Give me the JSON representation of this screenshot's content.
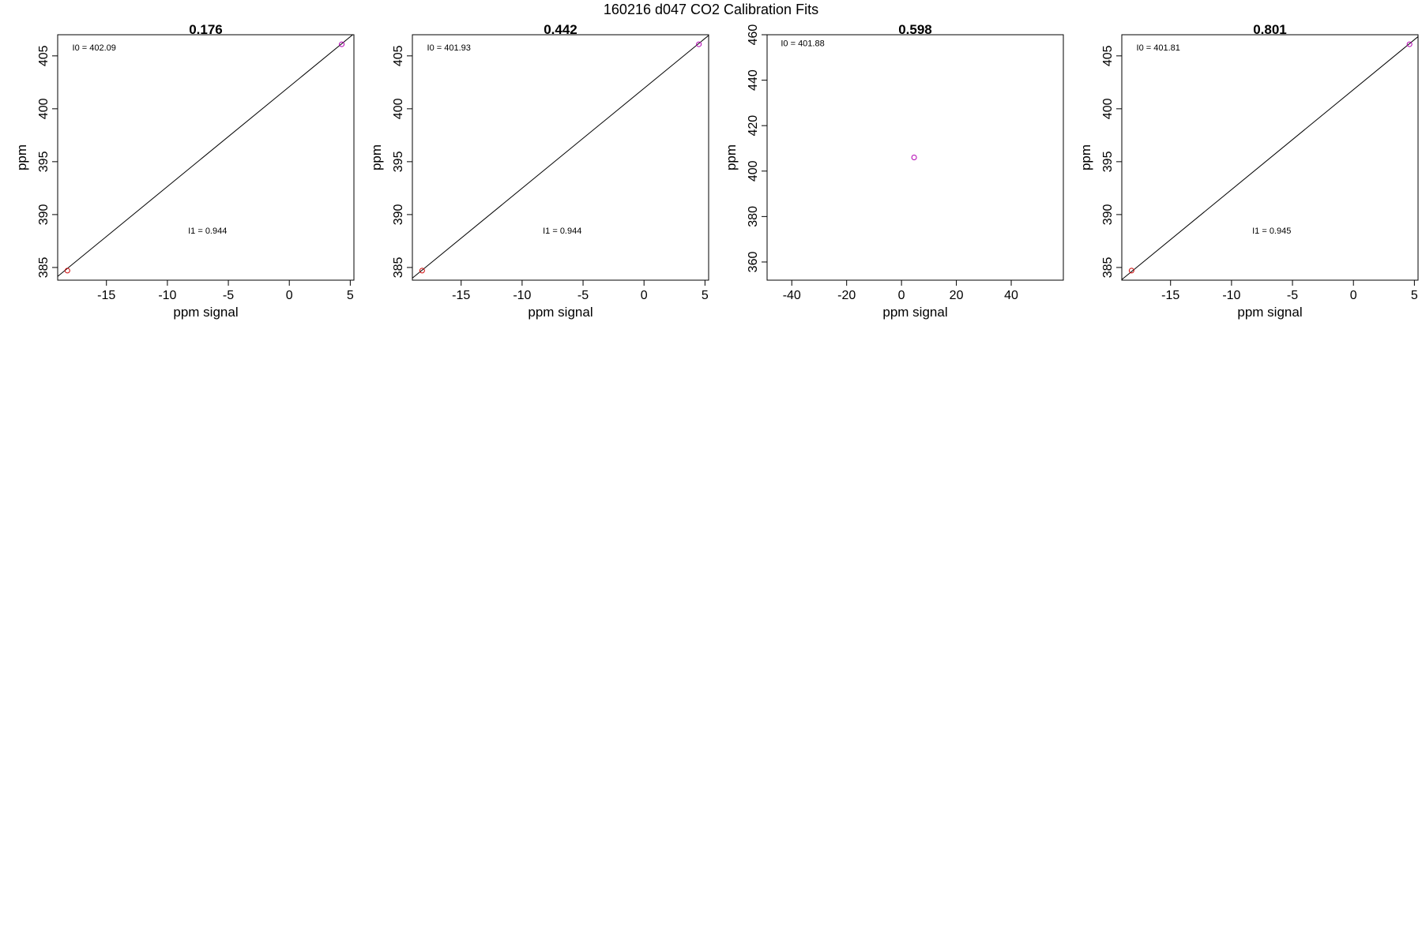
{
  "figure": {
    "title": "160216   d047   CO2 Calibration Fits"
  },
  "colors": {
    "axis": "#000000",
    "fit_line": "#000000",
    "low_point": "#cc0000",
    "high_point": "#b300b3"
  },
  "chart_data": [
    {
      "type": "scatter",
      "title": "0.176",
      "xlabel": "ppm signal",
      "ylabel": "ppm",
      "xlim": [
        -19.0,
        5.3
      ],
      "ylim": [
        383.8,
        407.0
      ],
      "xticks": [
        -15,
        -10,
        -5,
        0,
        5
      ],
      "yticks": [
        385,
        390,
        395,
        400,
        405
      ],
      "grid": false,
      "points": [
        {
          "x": -18.2,
          "y": 384.7,
          "color_key": "low_point"
        },
        {
          "x": 4.3,
          "y": 406.1,
          "color_key": "high_point"
        }
      ],
      "fit": {
        "intercept": 402.09,
        "slope": 0.944
      },
      "annotations": [
        {
          "text": "I0 =  402.09",
          "x": -17.8,
          "y": 405.5
        },
        {
          "text": "I1 =  0.944",
          "x": -8.3,
          "y": 388.2
        }
      ]
    },
    {
      "type": "scatter",
      "title": "0.442",
      "xlabel": "ppm signal",
      "ylabel": "ppm",
      "xlim": [
        -19.0,
        5.3
      ],
      "ylim": [
        383.8,
        407.0
      ],
      "xticks": [
        -15,
        -10,
        -5,
        0,
        5
      ],
      "yticks": [
        385,
        390,
        395,
        400,
        405
      ],
      "grid": false,
      "points": [
        {
          "x": -18.2,
          "y": 384.7,
          "color_key": "low_point"
        },
        {
          "x": 4.5,
          "y": 406.1,
          "color_key": "high_point"
        }
      ],
      "fit": {
        "intercept": 401.93,
        "slope": 0.944
      },
      "annotations": [
        {
          "text": "I0 =  401.93",
          "x": -17.8,
          "y": 405.5
        },
        {
          "text": "I1 =  0.944",
          "x": -8.3,
          "y": 388.2
        }
      ]
    },
    {
      "type": "scatter",
      "title": "0.598",
      "xlabel": "ppm signal",
      "ylabel": "ppm",
      "xlim": [
        -49.0,
        59.0
      ],
      "ylim": [
        352.0,
        460.0
      ],
      "xticks": [
        -40,
        -20,
        0,
        20,
        40
      ],
      "yticks": [
        360,
        380,
        400,
        420,
        440,
        460
      ],
      "grid": false,
      "points": [
        {
          "x": 4.6,
          "y": 406.0,
          "color_key": "high_point"
        }
      ],
      "fit": null,
      "annotations": [
        {
          "text": "I0 =  401.88",
          "x": -44.0,
          "y": 455.0
        }
      ]
    },
    {
      "type": "scatter",
      "title": "0.801",
      "xlabel": "ppm signal",
      "ylabel": "ppm",
      "xlim": [
        -19.0,
        5.3
      ],
      "ylim": [
        383.8,
        407.0
      ],
      "xticks": [
        -15,
        -10,
        -5,
        0,
        5
      ],
      "yticks": [
        385,
        390,
        395,
        400,
        405
      ],
      "grid": false,
      "points": [
        {
          "x": -18.2,
          "y": 384.7,
          "color_key": "low_point"
        },
        {
          "x": 4.6,
          "y": 406.1,
          "color_key": "high_point"
        }
      ],
      "fit": {
        "intercept": 401.81,
        "slope": 0.945
      },
      "annotations": [
        {
          "text": "I0 =  401.81",
          "x": -17.8,
          "y": 405.5
        },
        {
          "text": "I1 =  0.945",
          "x": -8.3,
          "y": 388.2
        }
      ]
    }
  ]
}
